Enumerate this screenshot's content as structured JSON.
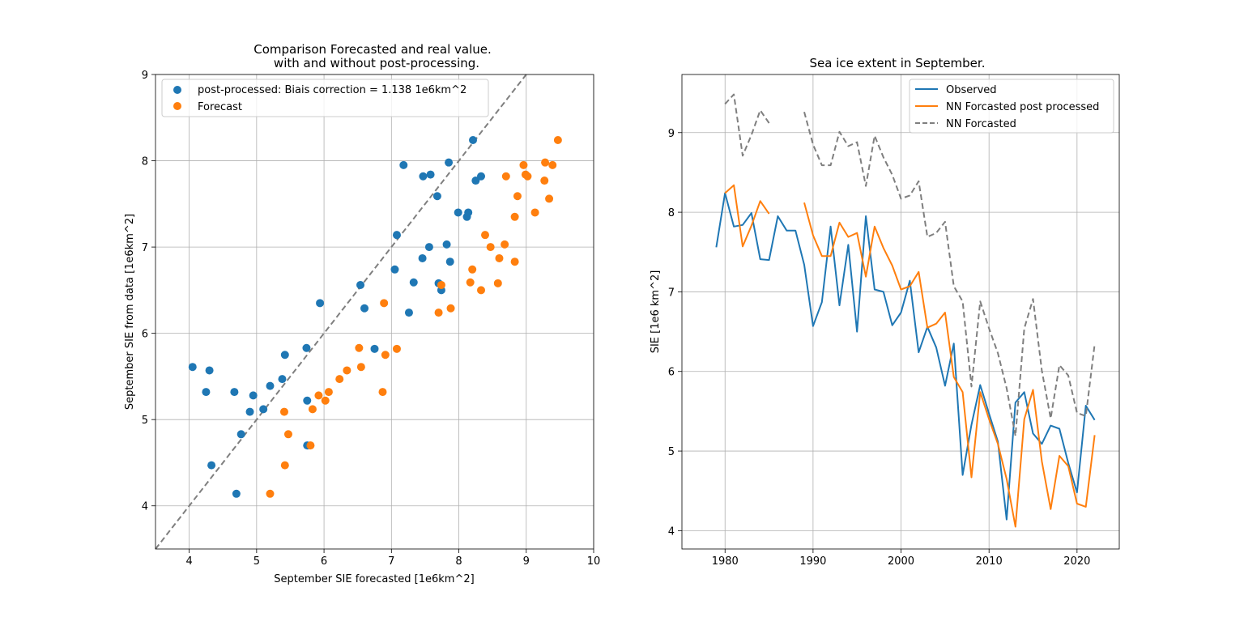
{
  "colors": {
    "blue": "#1f77b4",
    "orange": "#ff7f0e",
    "gray": "#7f7f7f",
    "grid": "#b0b0b0"
  },
  "chart_data": [
    {
      "type": "scatter",
      "title_line1": "Comparison Forecasted and real value.",
      "title_line2": "with and without post-processing.",
      "xlabel": "September SIE forecasted [1e6km^2]",
      "ylabel": "September SIE from data [1e6km^2]",
      "xlim": [
        3.5,
        10
      ],
      "ylim": [
        3.5,
        9
      ],
      "xticks": [
        "4",
        "5",
        "6",
        "7",
        "8",
        "9",
        "10"
      ],
      "yticks": [
        "4",
        "5",
        "6",
        "7",
        "8",
        "9"
      ],
      "grid": true,
      "legend_position": "upper left",
      "reference_line": "y = x (dashed gray)",
      "series": [
        {
          "name": "post-processed: Biais correction = 1.138 1e6km^2",
          "color": "#1f77b4",
          "points": [
            [
              4.05,
              5.61
            ],
            [
              4.3,
              5.57
            ],
            [
              4.25,
              5.32
            ],
            [
              4.67,
              5.32
            ],
            [
              4.95,
              5.28
            ],
            [
              4.9,
              5.09
            ],
            [
              5.1,
              5.12
            ],
            [
              5.2,
              5.39
            ],
            [
              5.38,
              5.47
            ],
            [
              5.42,
              5.75
            ],
            [
              5.74,
              5.83
            ],
            [
              5.75,
              5.22
            ],
            [
              4.77,
              4.83
            ],
            [
              4.33,
              4.47
            ],
            [
              4.7,
              4.14
            ],
            [
              5.75,
              4.7
            ],
            [
              5.94,
              6.35
            ],
            [
              6.54,
              6.56
            ],
            [
              6.6,
              6.29
            ],
            [
              6.75,
              5.82
            ],
            [
              7.05,
              6.74
            ],
            [
              7.08,
              7.14
            ],
            [
              7.18,
              7.95
            ],
            [
              7.26,
              6.24
            ],
            [
              7.33,
              6.59
            ],
            [
              7.46,
              6.87
            ],
            [
              7.47,
              7.82
            ],
            [
              7.56,
              7.0
            ],
            [
              7.58,
              7.84
            ],
            [
              7.68,
              7.59
            ],
            [
              7.7,
              6.58
            ],
            [
              7.74,
              6.5
            ],
            [
              7.82,
              7.03
            ],
            [
              7.85,
              7.98
            ],
            [
              7.87,
              6.83
            ],
            [
              7.99,
              7.4
            ],
            [
              8.12,
              7.35
            ],
            [
              8.14,
              7.4
            ],
            [
              8.21,
              8.24
            ],
            [
              8.25,
              7.77
            ],
            [
              8.33,
              7.82
            ]
          ]
        },
        {
          "name": "Forecast",
          "color": "#ff7f0e",
          "points": [
            [
              5.2,
              4.14
            ],
            [
              5.42,
              4.47
            ],
            [
              5.47,
              4.83
            ],
            [
              5.41,
              5.09
            ],
            [
              5.8,
              4.7
            ],
            [
              5.83,
              5.12
            ],
            [
              5.92,
              5.28
            ],
            [
              6.02,
              5.22
            ],
            [
              6.07,
              5.32
            ],
            [
              6.23,
              5.47
            ],
            [
              6.34,
              5.57
            ],
            [
              6.52,
              5.83
            ],
            [
              6.55,
              5.61
            ],
            [
              6.87,
              5.32
            ],
            [
              6.89,
              6.35
            ],
            [
              6.91,
              5.75
            ],
            [
              7.08,
              5.82
            ],
            [
              7.7,
              6.24
            ],
            [
              7.74,
              6.56
            ],
            [
              7.88,
              6.29
            ],
            [
              8.17,
              6.59
            ],
            [
              8.2,
              6.74
            ],
            [
              8.33,
              6.5
            ],
            [
              8.39,
              7.14
            ],
            [
              8.47,
              7.0
            ],
            [
              8.58,
              6.58
            ],
            [
              8.6,
              6.87
            ],
            [
              8.68,
              7.03
            ],
            [
              8.7,
              7.82
            ],
            [
              8.83,
              6.83
            ],
            [
              8.83,
              7.35
            ],
            [
              8.87,
              7.59
            ],
            [
              8.96,
              7.95
            ],
            [
              8.99,
              7.84
            ],
            [
              9.02,
              7.82
            ],
            [
              9.13,
              7.4
            ],
            [
              9.27,
              7.77
            ],
            [
              9.28,
              7.98
            ],
            [
              9.34,
              7.56
            ],
            [
              9.39,
              7.95
            ],
            [
              9.47,
              8.24
            ]
          ]
        }
      ]
    },
    {
      "type": "line",
      "title": "Sea ice extent in September.",
      "xlabel": "",
      "ylabel": "SIE [1e6 km^2]",
      "xlim": [
        1975.1,
        2024.8
      ],
      "ylim": [
        3.77,
        9.73
      ],
      "xticks": [
        "1980",
        "1990",
        "2000",
        "2010",
        "2020"
      ],
      "yticks": [
        "4",
        "5",
        "6",
        "7",
        "8",
        "9"
      ],
      "grid": true,
      "legend_position": "upper right",
      "x": [
        1979,
        1980,
        1981,
        1982,
        1983,
        1984,
        1985,
        1986,
        1987,
        1988,
        1989,
        1990,
        1991,
        1992,
        1993,
        1994,
        1995,
        1996,
        1997,
        1998,
        1999,
        2000,
        2001,
        2002,
        2003,
        2004,
        2005,
        2006,
        2007,
        2008,
        2009,
        2010,
        2011,
        2012,
        2013,
        2014,
        2015,
        2016,
        2017,
        2018,
        2019,
        2020,
        2021,
        2022
      ],
      "series": [
        {
          "name": "Observed",
          "color": "#1f77b4",
          "style": "solid",
          "values": [
            7.56,
            8.24,
            7.82,
            7.84,
            7.99,
            7.41,
            7.4,
            7.95,
            7.77,
            7.77,
            7.34,
            6.57,
            6.87,
            7.82,
            6.83,
            7.59,
            6.5,
            7.95,
            7.03,
            7.0,
            6.58,
            6.74,
            7.14,
            6.24,
            6.56,
            6.3,
            5.82,
            6.35,
            4.7,
            5.33,
            5.83,
            5.47,
            5.12,
            4.14,
            5.61,
            5.74,
            5.22,
            5.09,
            5.32,
            5.28,
            4.85,
            4.48,
            5.57,
            5.39
          ]
        },
        {
          "name": "NN Forcasted post processed",
          "color": "#ff7f0e",
          "style": "solid",
          "values": [
            null,
            8.24,
            8.34,
            7.57,
            7.83,
            8.14,
            7.98,
            null,
            null,
            null,
            8.12,
            7.71,
            7.45,
            7.45,
            7.87,
            7.69,
            7.74,
            7.19,
            7.82,
            7.55,
            7.33,
            7.03,
            7.07,
            7.25,
            6.55,
            6.6,
            6.74,
            5.93,
            5.74,
            4.67,
            5.74,
            5.4,
            5.09,
            4.65,
            4.05,
            5.4,
            5.77,
            4.87,
            4.27,
            4.94,
            4.81,
            4.34,
            4.3,
            5.2
          ]
        },
        {
          "name": "NN Forcasted",
          "color": "#7f7f7f",
          "style": "dashed",
          "values": [
            null,
            9.36,
            9.48,
            8.71,
            8.97,
            9.28,
            9.12,
            null,
            null,
            null,
            9.26,
            8.85,
            8.59,
            8.59,
            9.01,
            8.83,
            8.88,
            8.33,
            8.96,
            8.69,
            8.47,
            8.17,
            8.21,
            8.39,
            7.69,
            7.74,
            7.88,
            7.07,
            6.88,
            5.81,
            6.88,
            6.54,
            6.23,
            5.79,
            5.19,
            6.54,
            6.91,
            6.01,
            5.41,
            6.08,
            5.95,
            5.48,
            5.44,
            6.34
          ]
        }
      ]
    }
  ]
}
